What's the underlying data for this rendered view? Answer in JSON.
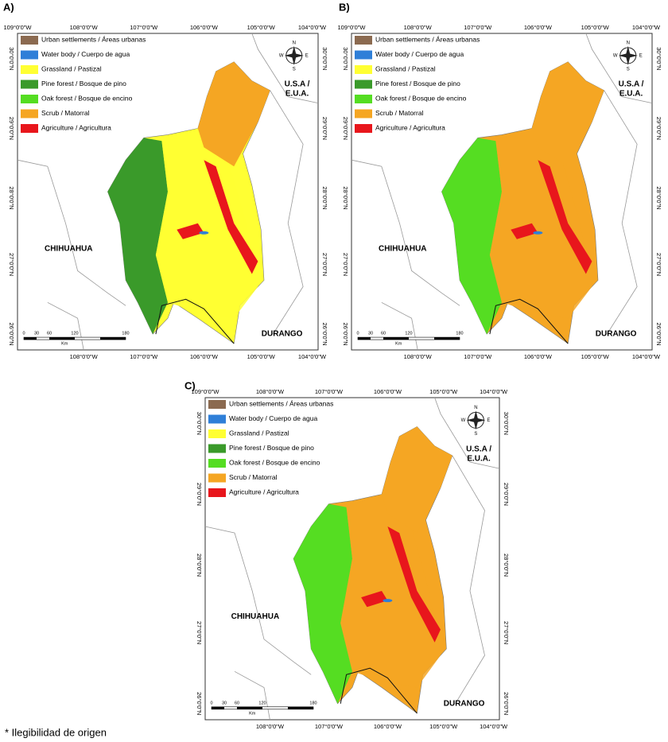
{
  "panels": [
    {
      "label": "A)"
    },
    {
      "label": "B)"
    },
    {
      "label": "C)"
    }
  ],
  "legend": [
    {
      "label": "Urban settlements / Áreas urbanas",
      "color": "#8b6a50"
    },
    {
      "label": "Water body / Cuerpo de agua",
      "color": "#2f7fd8"
    },
    {
      "label": "Grassland / Pastizal",
      "color": "#ffff33"
    },
    {
      "label": "Pine forest / Bosque de pino",
      "color": "#3a9a2a"
    },
    {
      "label": "Oak forest / Bosque de encino",
      "color": "#55dd22"
    },
    {
      "label": "Scrub / Matorral",
      "color": "#f5a623"
    },
    {
      "label": "Agriculture / Agricultura",
      "color": "#e8161c"
    }
  ],
  "top_longitudes": [
    "109°0'0\"W",
    "108°0'0\"W",
    "107°0'0\"W",
    "106°0'0\"W",
    "105°0'0\"W",
    "104°0'0\"W"
  ],
  "bottom_longitudes": [
    "108°0'0\"W",
    "107°0'0\"W",
    "106°0'0\"W",
    "105°0'0\"W",
    "104°0'0\"W"
  ],
  "latitudes": [
    "30°0'0\"N",
    "29°0'0\"N",
    "28°0'0\"N",
    "27°0'0\"N",
    "26°0'0\"N"
  ],
  "places": {
    "chihuahua": "CHIHUAHUA",
    "durango": "DURANGO",
    "usa": [
      "U.S.A /",
      "E.U.A."
    ]
  },
  "compass": {
    "n": "N",
    "s": "S",
    "e": "E",
    "w": "W"
  },
  "scale": {
    "ticks": [
      "0",
      "30",
      "60",
      "120",
      "180"
    ],
    "unit": "Km"
  },
  "footnote": "* Ilegibilidad de origen"
}
